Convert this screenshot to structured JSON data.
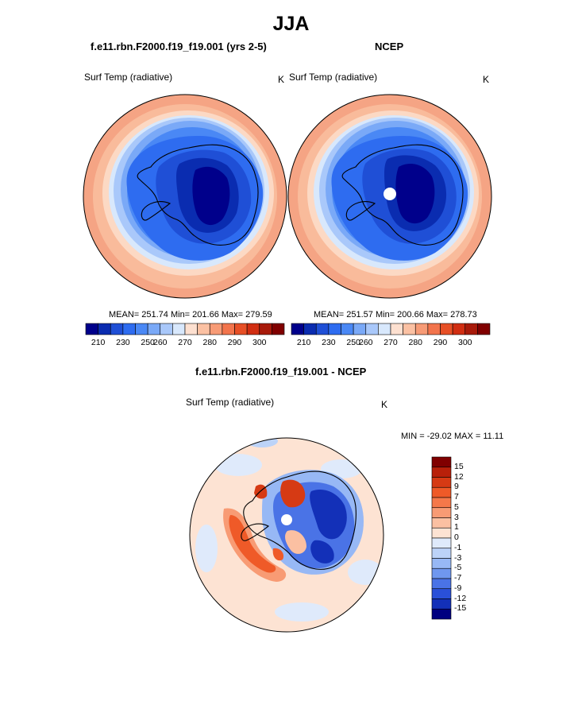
{
  "title": "JJA",
  "panels": [
    {
      "name": "model",
      "title": "f.e11.rbn.F2000.f19_f19.001 (yrs 2-5)",
      "variable": "Surf Temp (radiative)",
      "units": "K",
      "stats": {
        "mean": "251.74",
        "min": "201.66",
        "max": "279.59",
        "text": "MEAN= 251.74  Min= 201.66  Max= 279.59"
      }
    },
    {
      "name": "obs",
      "title": "NCEP",
      "variable": "Surf Temp (radiative)",
      "units": "K",
      "stats": {
        "mean": "251.57",
        "min": "200.66",
        "max": "278.73",
        "text": "MEAN= 251.57  Min= 200.66  Max= 278.73"
      }
    }
  ],
  "abs_colorbar": {
    "colors": [
      "#00008b",
      "#0a2cb0",
      "#1f4fd6",
      "#2e6cf0",
      "#4a88f5",
      "#7aa9f7",
      "#a9c8fa",
      "#d8e8fc",
      "#fde0d0",
      "#fbc1a3",
      "#f79b76",
      "#f2744c",
      "#e74f26",
      "#d12e12",
      "#a81a0a",
      "#800000"
    ],
    "tick_labels": [
      "210",
      "230",
      "250",
      "260",
      "270",
      "280",
      "290",
      "300"
    ]
  },
  "diff_panel": {
    "title": "f.e11.rbn.F2000.f19_f19.001 - NCEP",
    "variable": "Surf Temp (radiative)",
    "units": "K",
    "minmax_text": "MIN = -29.02 MAX =  11.11"
  },
  "diff_colorbar": {
    "colors": [
      "#800000",
      "#b8200a",
      "#d63a14",
      "#ef5a28",
      "#f5784a",
      "#f89b74",
      "#fbc0a2",
      "#fde3d3",
      "#dfeafb",
      "#bcd3f8",
      "#97b8f5",
      "#6f97ef",
      "#4a73e6",
      "#2a50d8",
      "#1330b8",
      "#000080"
    ],
    "tick_labels": [
      "15",
      "12",
      "9",
      "7",
      "5",
      "3",
      "1",
      "0",
      "-1",
      "-3",
      "-5",
      "-7",
      "-9",
      "-12",
      "-15"
    ]
  }
}
